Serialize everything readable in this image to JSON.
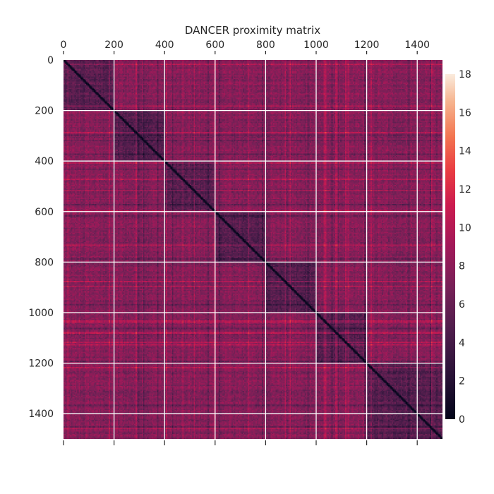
{
  "chart_data": {
    "type": "heatmap",
    "title": "DANCER proximity matrix",
    "xlabel": "",
    "ylabel": "",
    "matrix_size": 1500,
    "xlim": [
      0,
      1500
    ],
    "ylim": [
      1500,
      0
    ],
    "x_ticks": [
      0,
      200,
      400,
      600,
      800,
      1000,
      1200,
      1400
    ],
    "y_ticks": [
      0,
      200,
      400,
      600,
      800,
      1000,
      1200,
      1400
    ],
    "x_tick_labels": [
      "0",
      "200",
      "400",
      "600",
      "800",
      "1000",
      "1200",
      "1400"
    ],
    "y_tick_labels": [
      "0",
      "200",
      "400",
      "600",
      "800",
      "1000",
      "1200",
      "1400"
    ],
    "x_ticks_position": "top",
    "grid": true,
    "colormap": "rocket",
    "diagonal_value": 0,
    "colorbar": {
      "placement": "right",
      "range": [
        0,
        18
      ],
      "ticks": [
        0,
        2,
        4,
        6,
        8,
        10,
        12,
        14,
        16,
        18
      ],
      "tick_labels": [
        "0",
        "2",
        "4",
        "6",
        "8",
        "10",
        "12",
        "14",
        "16",
        "18"
      ]
    },
    "cluster_blocks": [
      {
        "start": 0,
        "end": 200
      },
      {
        "start": 200,
        "end": 400
      },
      {
        "start": 400,
        "end": 600
      },
      {
        "start": 600,
        "end": 800
      },
      {
        "start": 800,
        "end": 1000
      },
      {
        "start": 1000,
        "end": 1200
      },
      {
        "start": 1200,
        "end": 1500
      }
    ],
    "typical_within_block_value": 5,
    "typical_between_block_value": 7.5
  }
}
